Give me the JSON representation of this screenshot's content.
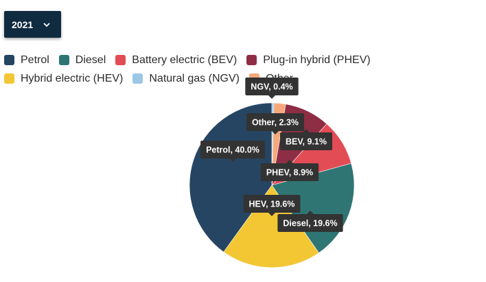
{
  "year_selector": {
    "value": "2021",
    "icon": "chevron-down-icon"
  },
  "chart_data": {
    "type": "pie",
    "title": "",
    "legend_position": "top-left",
    "slices": [
      {
        "name": "Petrol",
        "short": "Petrol",
        "value": 40.0,
        "color": "#264563"
      },
      {
        "name": "Diesel",
        "short": "Diesel",
        "value": 19.6,
        "color": "#2f7574"
      },
      {
        "name": "Battery electric (BEV)",
        "short": "BEV",
        "value": 9.1,
        "color": "#e24c55"
      },
      {
        "name": "Plug-in hybrid (PHEV)",
        "short": "PHEV",
        "value": 8.9,
        "color": "#8e2e45"
      },
      {
        "name": "Hybrid electric (HEV)",
        "short": "HEV",
        "value": 19.6,
        "color": "#f3c734"
      },
      {
        "name": "Natural gas (NGV)",
        "short": "NGV",
        "value": 0.4,
        "color": "#9cc6e6"
      },
      {
        "name": "Other",
        "short": "Other",
        "value": 2.3,
        "color": "#f5a97a"
      }
    ],
    "labels": [
      {
        "text": "NGV, 0.4%"
      },
      {
        "text": "Other, 2.3%"
      },
      {
        "text": "BEV, 9.1%"
      },
      {
        "text": "PHEV, 8.9%"
      },
      {
        "text": "Petrol, 40.0%"
      },
      {
        "text": "HEV, 19.6%"
      },
      {
        "text": "Diesel, 19.6%"
      }
    ]
  }
}
